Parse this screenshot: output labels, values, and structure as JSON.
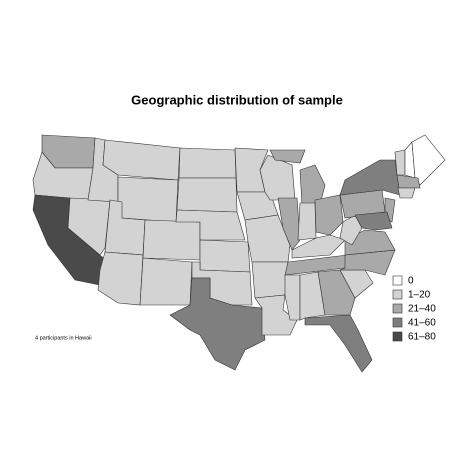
{
  "title": "Geographic distribution of sample",
  "note": "4 participants in Hawaii",
  "legend": {
    "items": [
      {
        "label": "0",
        "color": "#ffffff"
      },
      {
        "label": "1–20",
        "color": "#d3d3d3"
      },
      {
        "label": "21–40",
        "color": "#a9a9a9"
      },
      {
        "label": "41–60",
        "color": "#7f7f7f"
      },
      {
        "label": "61–80",
        "color": "#4a4a4a"
      }
    ]
  }
}
